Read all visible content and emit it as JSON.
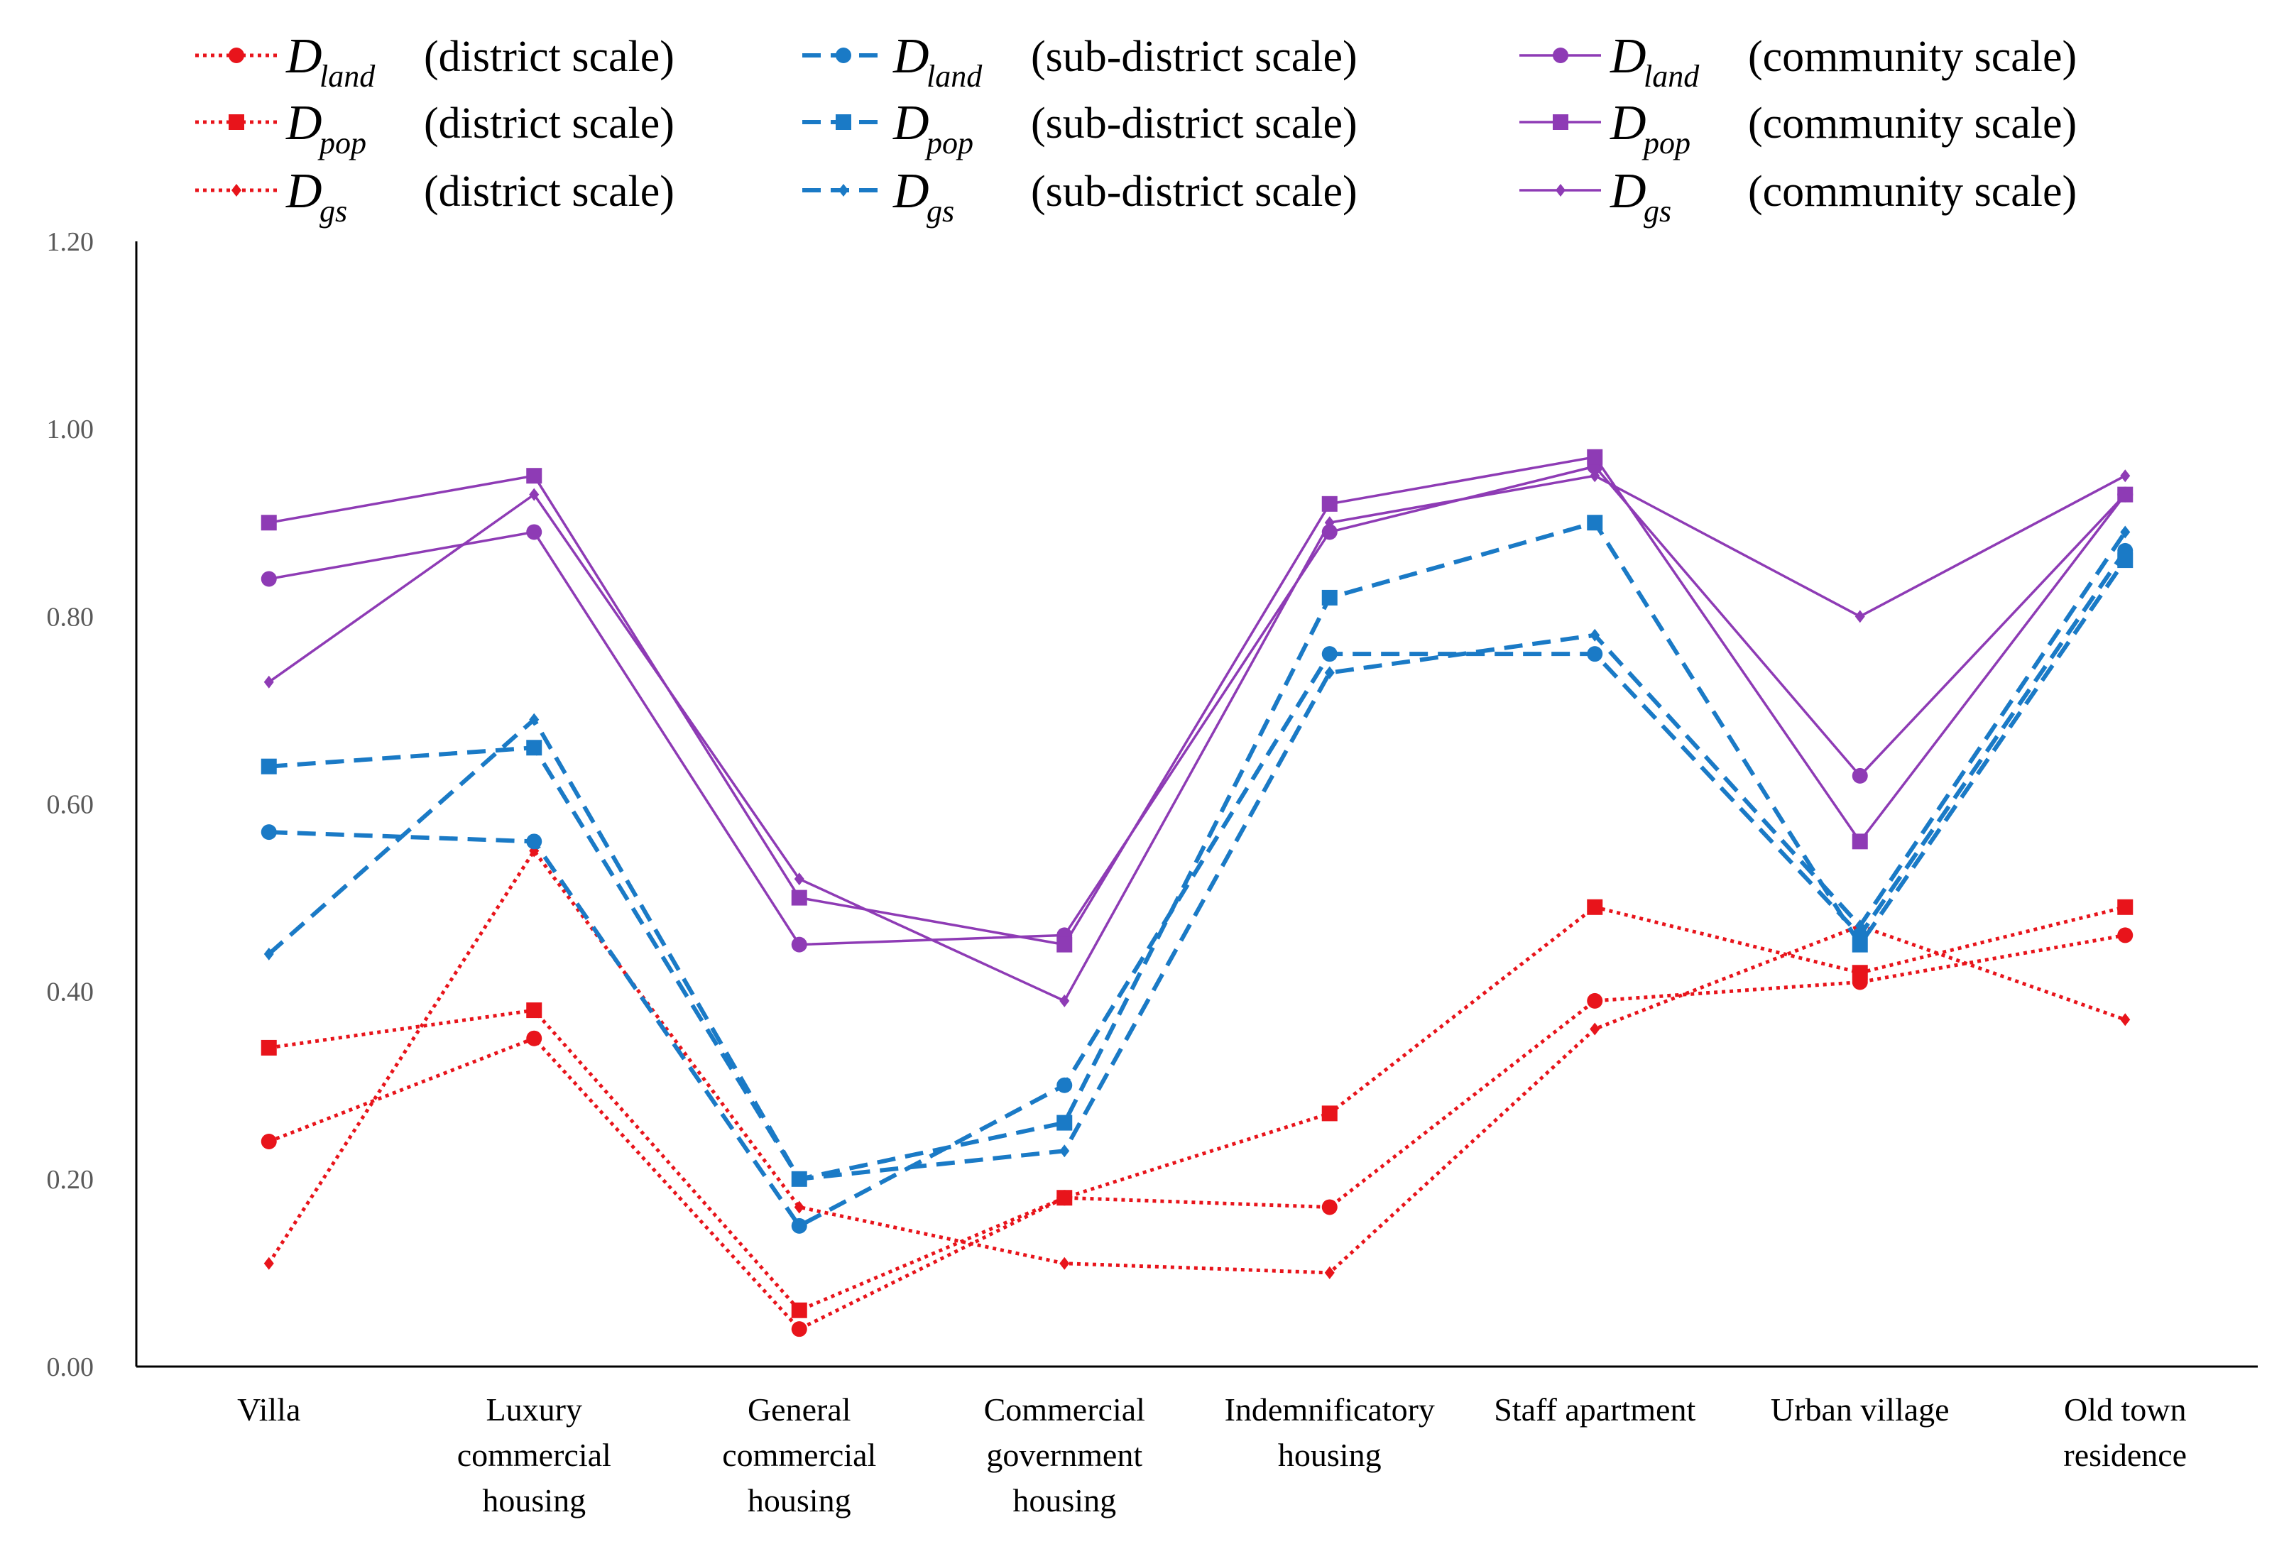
{
  "chart_data": {
    "type": "line",
    "title": "",
    "xlabel": "",
    "ylabel": "",
    "ylim": [
      0,
      1.2
    ],
    "ytick_labels": [
      "0.00",
      "0.20",
      "0.40",
      "0.60",
      "0.80",
      "1.00",
      "1.20"
    ],
    "ytick_values": [
      0,
      0.2,
      0.4,
      0.6,
      0.8,
      1.0,
      1.2
    ],
    "grid": false,
    "legend_position": "top",
    "categories": [
      [
        "Villa"
      ],
      [
        "Luxury",
        "commercial",
        "housing"
      ],
      [
        "General",
        "commercial",
        "housing"
      ],
      [
        "Commercial",
        "government",
        "housing"
      ],
      [
        "Indemnificatory",
        "housing"
      ],
      [
        "Staff apartment"
      ],
      [
        "Urban village"
      ],
      [
        "Old town",
        "residence"
      ]
    ],
    "series": [
      {
        "var": "D",
        "sub": "land",
        "scale": "(district scale)",
        "color": "#e8141b",
        "dash": "dotted",
        "marker": "circle",
        "values": [
          0.24,
          0.35,
          0.04,
          0.18,
          0.17,
          0.39,
          0.41,
          0.46
        ]
      },
      {
        "var": "D",
        "sub": "pop",
        "scale": "(district scale)",
        "color": "#e8141b",
        "dash": "dotted",
        "marker": "square",
        "values": [
          0.34,
          0.38,
          0.06,
          0.18,
          0.27,
          0.49,
          0.42,
          0.49
        ]
      },
      {
        "var": "D",
        "sub": "gs",
        "scale": "(district scale)",
        "color": "#e8141b",
        "dash": "dotted",
        "marker": "diamond",
        "values": [
          0.11,
          0.55,
          0.17,
          0.11,
          0.1,
          0.36,
          0.47,
          0.37
        ]
      },
      {
        "var": "D",
        "sub": "land",
        "scale": "(sub-district scale)",
        "color": "#1a7ac6",
        "dash": "dashed",
        "marker": "circle",
        "values": [
          0.57,
          0.56,
          0.15,
          0.3,
          0.76,
          0.76,
          0.46,
          0.87
        ]
      },
      {
        "var": "D",
        "sub": "pop",
        "scale": "(sub-district scale)",
        "color": "#1a7ac6",
        "dash": "dashed",
        "marker": "square",
        "values": [
          0.64,
          0.66,
          0.2,
          0.26,
          0.82,
          0.9,
          0.45,
          0.86
        ]
      },
      {
        "var": "D",
        "sub": "gs",
        "scale": "(sub-district scale)",
        "color": "#1a7ac6",
        "dash": "dashed",
        "marker": "diamond",
        "values": [
          0.44,
          0.69,
          0.2,
          0.23,
          0.74,
          0.78,
          0.47,
          0.89
        ]
      },
      {
        "var": "D",
        "sub": "land",
        "scale": "(community scale)",
        "color": "#8e3bb5",
        "dash": "solid",
        "marker": "circle",
        "values": [
          0.84,
          0.89,
          0.45,
          0.46,
          0.89,
          0.96,
          0.63,
          0.93
        ]
      },
      {
        "var": "D",
        "sub": "pop",
        "scale": "(community scale)",
        "color": "#8e3bb5",
        "dash": "solid",
        "marker": "square",
        "values": [
          0.9,
          0.95,
          0.5,
          0.45,
          0.92,
          0.97,
          0.56,
          0.93
        ]
      },
      {
        "var": "D",
        "sub": "gs",
        "scale": "(community scale)",
        "color": "#8e3bb5",
        "dash": "solid",
        "marker": "diamond",
        "values": [
          0.73,
          0.93,
          0.52,
          0.39,
          0.9,
          0.95,
          0.8,
          0.95
        ]
      }
    ]
  }
}
